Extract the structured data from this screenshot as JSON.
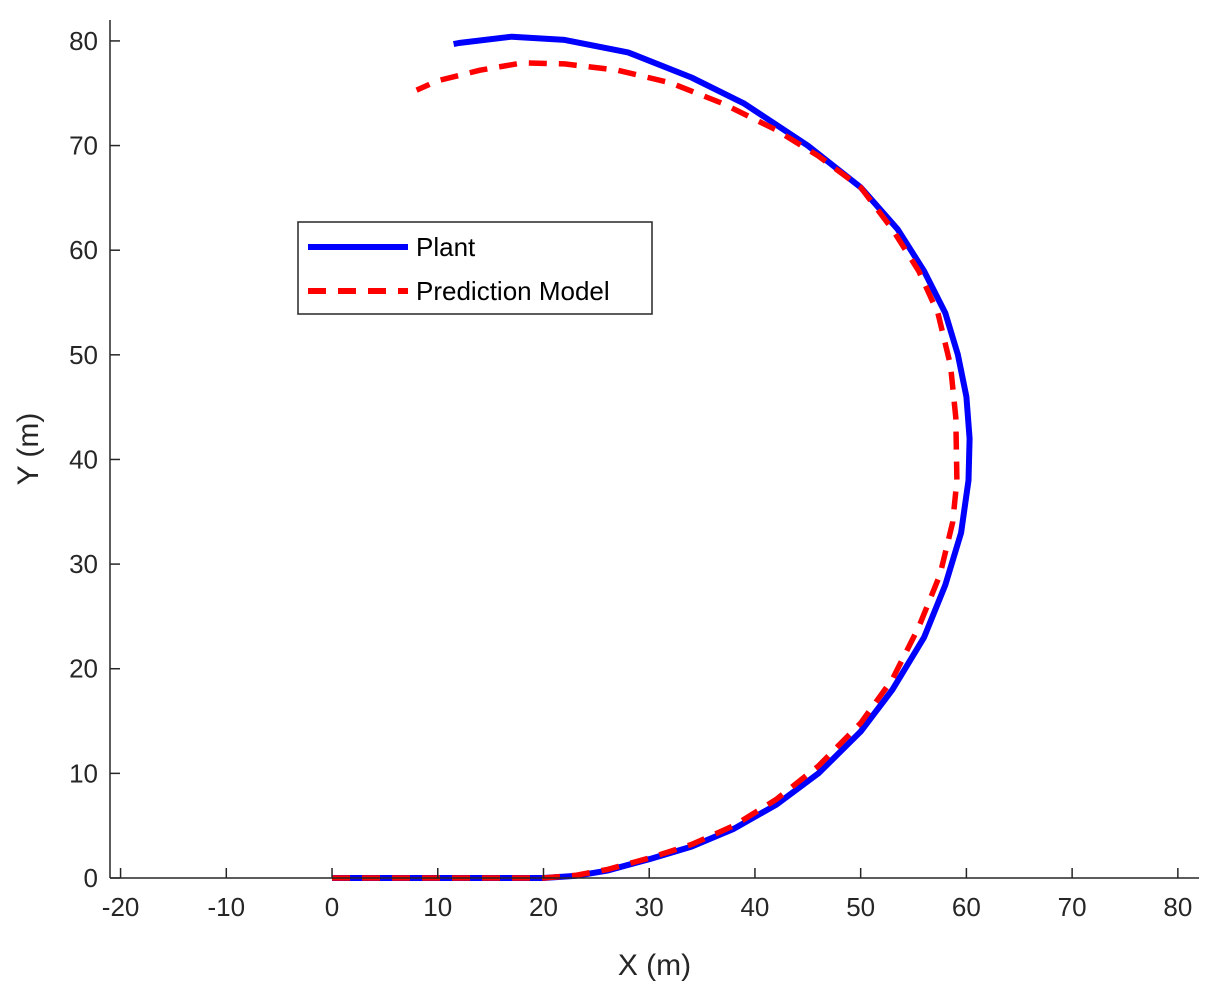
{
  "chart_data": {
    "type": "line",
    "title": "",
    "xlabel": "X (m)",
    "ylabel": "Y (m)",
    "xlim": [
      -21,
      82
    ],
    "ylim": [
      0,
      82
    ],
    "xticks": [
      -20,
      -10,
      0,
      10,
      20,
      30,
      40,
      50,
      60,
      70,
      80
    ],
    "yticks": [
      0,
      10,
      20,
      30,
      40,
      50,
      60,
      70,
      80
    ],
    "grid": false,
    "legend_position": "upper-left",
    "series": [
      {
        "name": "Plant",
        "color": "#0000ff",
        "style": "solid",
        "points": [
          [
            0,
            0
          ],
          [
            10,
            0
          ],
          [
            20,
            0
          ],
          [
            23,
            0.2
          ],
          [
            26,
            0.7
          ],
          [
            30,
            1.8
          ],
          [
            34,
            3.0
          ],
          [
            38,
            4.7
          ],
          [
            42,
            7.0
          ],
          [
            46,
            10.0
          ],
          [
            50,
            14.0
          ],
          [
            53,
            18.0
          ],
          [
            56,
            23.0
          ],
          [
            58,
            28.0
          ],
          [
            59.5,
            33.0
          ],
          [
            60.2,
            38.0
          ],
          [
            60.3,
            42.0
          ],
          [
            60.0,
            46.0
          ],
          [
            59.2,
            50.0
          ],
          [
            58.0,
            54.0
          ],
          [
            56.0,
            58.0
          ],
          [
            53.5,
            62.0
          ],
          [
            50.0,
            66.0
          ],
          [
            45.0,
            70.0
          ],
          [
            39.0,
            74.0
          ],
          [
            34.0,
            76.5
          ],
          [
            28.0,
            78.9
          ],
          [
            22.0,
            80.1
          ],
          [
            17.0,
            80.4
          ],
          [
            12.0,
            79.8
          ],
          [
            11.5,
            79.7
          ]
        ]
      },
      {
        "name": "Prediction Model",
        "color": "#ff0000",
        "style": "dashed",
        "points": [
          [
            0,
            0
          ],
          [
            10,
            0
          ],
          [
            20,
            0
          ],
          [
            23,
            0.25
          ],
          [
            26,
            0.8
          ],
          [
            30,
            1.9
          ],
          [
            34,
            3.2
          ],
          [
            38,
            5.0
          ],
          [
            42,
            7.5
          ],
          [
            46,
            10.7
          ],
          [
            50,
            14.8
          ],
          [
            53,
            19.0
          ],
          [
            55.5,
            24.0
          ],
          [
            57.5,
            29.0
          ],
          [
            58.7,
            34.0
          ],
          [
            59.1,
            38.0
          ],
          [
            59.0,
            44.0
          ],
          [
            58.5,
            49.0
          ],
          [
            57.3,
            54.0
          ],
          [
            55.5,
            58.0
          ],
          [
            53.0,
            62.0
          ],
          [
            50.0,
            66.0
          ],
          [
            46.0,
            69.0
          ],
          [
            42.0,
            71.5
          ],
          [
            37.0,
            74.0
          ],
          [
            32.0,
            76.0
          ],
          [
            27.0,
            77.2
          ],
          [
            22.0,
            77.8
          ],
          [
            18.0,
            77.9
          ],
          [
            14.0,
            77.2
          ],
          [
            10.0,
            76.2
          ],
          [
            8.0,
            75.3
          ]
        ]
      }
    ]
  }
}
